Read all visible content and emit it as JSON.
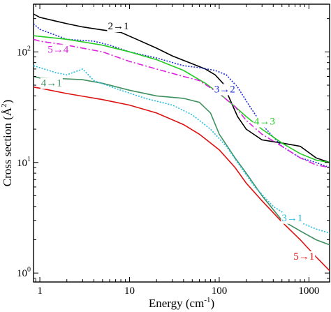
{
  "chart_data": {
    "type": "line",
    "title": "",
    "xlabel": "Energy (cm",
    "xlabel_sup": "-1",
    "xlabel_end": ")",
    "ylabel": "Cross section (Å",
    "ylabel_sup": "2",
    "ylabel_end": ")",
    "xscale": "log",
    "yscale": "log",
    "xlim": [
      0.85,
      1700
    ],
    "ylim": [
      0.83,
      270
    ],
    "grid": false,
    "legend": "inline labels",
    "x_ticks": [
      {
        "value": 1,
        "label": "1"
      },
      {
        "value": 10,
        "label": "10"
      },
      {
        "value": 100,
        "label": "100"
      },
      {
        "value": 1000,
        "label": "1000"
      }
    ],
    "y_ticks": [
      {
        "value": 1,
        "label": "10",
        "sup": "0"
      },
      {
        "value": 10,
        "label": "10",
        "sup": "1"
      },
      {
        "value": 100,
        "label": "10",
        "sup": "2"
      }
    ],
    "series": [
      {
        "name": "2→1",
        "color": "#000000",
        "dash": "",
        "label_x": 7.5,
        "label_y": 160,
        "points": [
          [
            0.85,
            220
          ],
          [
            1,
            205
          ],
          [
            1.5,
            190
          ],
          [
            2,
            180
          ],
          [
            3,
            168
          ],
          [
            5,
            158
          ],
          [
            8,
            150
          ],
          [
            12,
            130
          ],
          [
            20,
            108
          ],
          [
            30,
            92
          ],
          [
            50,
            78
          ],
          [
            70,
            70
          ],
          [
            90,
            62
          ],
          [
            110,
            52
          ],
          [
            130,
            38
          ],
          [
            160,
            26
          ],
          [
            200,
            20
          ],
          [
            300,
            16
          ],
          [
            500,
            15
          ],
          [
            800,
            14
          ],
          [
            1200,
            11
          ],
          [
            1700,
            10
          ]
        ]
      },
      {
        "name": "3→2",
        "color": "#1f2fd6",
        "dash": "2,2",
        "label_x": 115,
        "label_y": 43,
        "points": [
          [
            0.85,
            180
          ],
          [
            1,
            160
          ],
          [
            2,
            130
          ],
          [
            4,
            125
          ],
          [
            6,
            115
          ],
          [
            10,
            100
          ],
          [
            20,
            88
          ],
          [
            40,
            75
          ],
          [
            60,
            72
          ],
          [
            90,
            68
          ],
          [
            120,
            62
          ],
          [
            160,
            48
          ],
          [
            220,
            32
          ],
          [
            300,
            22
          ],
          [
            500,
            14
          ],
          [
            800,
            11
          ],
          [
            1200,
            10
          ],
          [
            1700,
            9
          ]
        ]
      },
      {
        "name": "4→3",
        "color": "#22cc22",
        "dash": "",
        "label_x": 320,
        "label_y": 22,
        "points": [
          [
            0.85,
            140
          ],
          [
            1,
            138
          ],
          [
            2,
            130
          ],
          [
            5,
            115
          ],
          [
            10,
            100
          ],
          [
            20,
            85
          ],
          [
            40,
            68
          ],
          [
            70,
            52
          ],
          [
            100,
            42
          ],
          [
            150,
            32
          ],
          [
            200,
            26
          ],
          [
            300,
            20
          ],
          [
            500,
            15
          ],
          [
            800,
            12
          ],
          [
            1200,
            10.5
          ],
          [
            1700,
            10
          ]
        ]
      },
      {
        "name": "5→4",
        "color": "#dd22dd",
        "dash": "9,3,2,3",
        "label_x": 1.6,
        "label_y": 98,
        "points": [
          [
            0.85,
            130
          ],
          [
            1,
            125
          ],
          [
            2,
            115
          ],
          [
            5,
            100
          ],
          [
            10,
            82
          ],
          [
            20,
            70
          ],
          [
            40,
            60
          ],
          [
            60,
            55
          ],
          [
            100,
            42
          ],
          [
            150,
            32
          ],
          [
            200,
            24
          ],
          [
            300,
            18
          ],
          [
            500,
            14
          ],
          [
            800,
            11
          ],
          [
            1200,
            9.5
          ],
          [
            1700,
            9
          ]
        ]
      },
      {
        "name": "4→1",
        "color": "#3f8f5f",
        "dash": "",
        "label_x": 1.35,
        "label_y": 49,
        "points": [
          [
            0.85,
            60
          ],
          [
            1,
            58
          ],
          [
            2,
            57
          ],
          [
            3,
            56
          ],
          [
            5,
            52
          ],
          [
            10,
            45
          ],
          [
            20,
            40
          ],
          [
            40,
            38
          ],
          [
            60,
            35
          ],
          [
            80,
            28
          ],
          [
            100,
            18
          ],
          [
            150,
            11
          ],
          [
            200,
            8
          ],
          [
            300,
            5
          ],
          [
            500,
            3
          ],
          [
            800,
            2.4
          ],
          [
            1200,
            2
          ],
          [
            1700,
            1.8
          ]
        ]
      },
      {
        "name": "3→1",
        "color": "#22bbdd",
        "dash": "2,2",
        "label_x": 650,
        "label_y": 2.95,
        "points": [
          [
            0.85,
            75
          ],
          [
            1,
            72
          ],
          [
            1.5,
            65
          ],
          [
            2,
            62
          ],
          [
            3,
            70
          ],
          [
            4,
            55
          ],
          [
            8,
            45
          ],
          [
            15,
            38
          ],
          [
            30,
            33
          ],
          [
            50,
            27
          ],
          [
            80,
            20
          ],
          [
            120,
            14
          ],
          [
            160,
            10
          ],
          [
            250,
            6
          ],
          [
            400,
            4
          ],
          [
            700,
            3
          ],
          [
            1200,
            2.5
          ],
          [
            1700,
            2.3
          ]
        ]
      },
      {
        "name": "5→1",
        "color": "#dd1111",
        "dash": "",
        "label_x": 880,
        "label_y": 1.32,
        "points": [
          [
            0.85,
            48
          ],
          [
            1,
            47
          ],
          [
            2,
            42
          ],
          [
            5,
            37
          ],
          [
            10,
            33
          ],
          [
            20,
            28
          ],
          [
            40,
            22
          ],
          [
            60,
            18
          ],
          [
            100,
            13
          ],
          [
            150,
            9
          ],
          [
            200,
            6.5
          ],
          [
            300,
            4.5
          ],
          [
            500,
            2.9
          ],
          [
            800,
            2
          ],
          [
            1200,
            1.4
          ],
          [
            1700,
            1.05
          ]
        ]
      }
    ]
  }
}
